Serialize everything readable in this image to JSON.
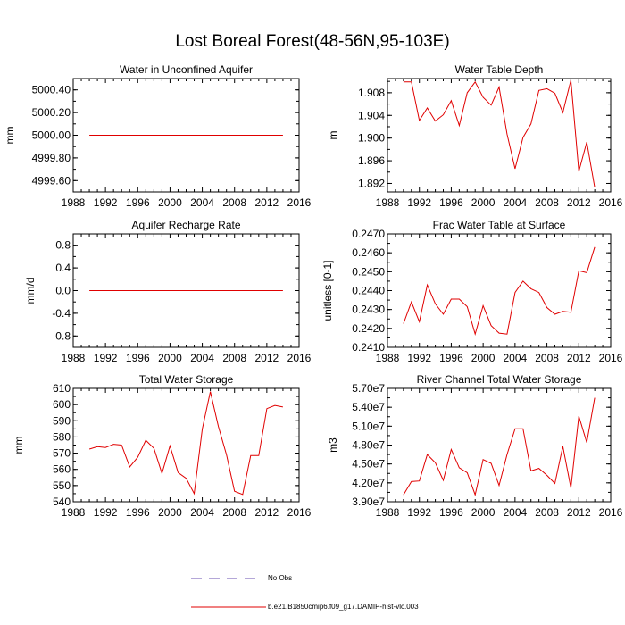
{
  "title": "Lost Boreal Forest(48-56N,95-103E)",
  "chart_data": [
    {
      "type": "line",
      "title": "Water in Unconfined Aquifer",
      "xlabel": "",
      "ylabel": "mm",
      "xlim": [
        1988,
        2016
      ],
      "ylim": [
        4999.5,
        5000.5
      ],
      "yticks": [
        4999.6,
        4999.8,
        5000.0,
        5000.2,
        5000.4
      ],
      "ytick_labels": [
        "4999.60",
        "4999.80",
        "5000.00",
        "5000.20",
        "5000.40"
      ],
      "series": [
        {
          "name": "b.e21.B1850cmip6.f09_g17.DAMIP-hist-vlc.003",
          "x": [
            1990,
            2014
          ],
          "y": [
            5000.0,
            5000.0
          ]
        }
      ]
    },
    {
      "type": "line",
      "title": "Water Table Depth",
      "xlabel": "",
      "ylabel": "m",
      "xlim": [
        1988,
        2016
      ],
      "ylim": [
        1.8905,
        1.9105
      ],
      "yticks": [
        1.892,
        1.896,
        1.9,
        1.904,
        1.908
      ],
      "ytick_labels": [
        "1.892",
        "1.896",
        "1.900",
        "1.904",
        "1.908"
      ],
      "series": [
        {
          "name": "b.e21.B1850cmip6.f09_g17.DAMIP-hist-vlc.003",
          "x": [
            1990,
            1991,
            1992,
            1993,
            1994,
            1995,
            1996,
            1997,
            1998,
            1999,
            2000,
            2001,
            2002,
            2003,
            2004,
            2005,
            2006,
            2007,
            2008,
            2009,
            2010,
            2011,
            2012,
            2013,
            2014
          ],
          "y": [
            1.9099,
            1.9099,
            1.9031,
            1.9053,
            1.903,
            1.9041,
            1.9066,
            1.9022,
            1.908,
            1.9099,
            1.9072,
            1.9058,
            1.909,
            1.9007,
            1.8946,
            1.9001,
            1.9025,
            1.9084,
            1.9087,
            1.9079,
            1.9045,
            1.9102,
            1.8941,
            1.8993,
            1.8913
          ]
        }
      ]
    },
    {
      "type": "line",
      "title": "Aquifer Recharge Rate",
      "xlabel": "",
      "ylabel": "mm/d",
      "xlim": [
        1988,
        2016
      ],
      "ylim": [
        -1.0,
        1.0
      ],
      "yticks": [
        -0.8,
        -0.4,
        0.0,
        0.4,
        0.8
      ],
      "ytick_labels": [
        "-0.8",
        "-0.4",
        "0.0",
        "0.4",
        "0.8"
      ],
      "series": [
        {
          "name": "b.e21.B1850cmip6.f09_g17.DAMIP-hist-vlc.003",
          "x": [
            1990,
            2014
          ],
          "y": [
            0.0,
            0.0
          ]
        }
      ]
    },
    {
      "type": "line",
      "title": "Frac Water Table at Surface",
      "xlabel": "",
      "ylabel": "unitless [0-1]",
      "xlim": [
        1988,
        2016
      ],
      "ylim": [
        0.241,
        0.247
      ],
      "yticks": [
        0.241,
        0.242,
        0.243,
        0.244,
        0.245,
        0.246,
        0.247
      ],
      "ytick_labels": [
        "0.2410",
        "0.2420",
        "0.2430",
        "0.2440",
        "0.2450",
        "0.2460",
        "0.2470"
      ],
      "series": [
        {
          "name": "b.e21.B1850cmip6.f09_g17.DAMIP-hist-vlc.003",
          "x": [
            1990,
            1991,
            1992,
            1993,
            1994,
            1995,
            1996,
            1997,
            1998,
            1999,
            2000,
            2001,
            2002,
            2003,
            2004,
            2005,
            2006,
            2007,
            2008,
            2009,
            2010,
            2011,
            2012,
            2013,
            2014
          ],
          "y": [
            0.24225,
            0.2434,
            0.24235,
            0.2443,
            0.2433,
            0.24275,
            0.24355,
            0.24355,
            0.24315,
            0.2417,
            0.2432,
            0.24215,
            0.24175,
            0.2417,
            0.2439,
            0.2445,
            0.2441,
            0.2439,
            0.2431,
            0.24275,
            0.2429,
            0.24285,
            0.24505,
            0.24495,
            0.2463
          ]
        }
      ]
    },
    {
      "type": "line",
      "title": "Total Water Storage",
      "xlabel": "",
      "ylabel": "mm",
      "xlim": [
        1988,
        2016
      ],
      "ylim": [
        540,
        610
      ],
      "yticks": [
        540,
        550,
        560,
        570,
        580,
        590,
        600,
        610
      ],
      "ytick_labels": [
        "540",
        "550",
        "560",
        "570",
        "580",
        "590",
        "600",
        "610"
      ],
      "series": [
        {
          "name": "b.e21.B1850cmip6.f09_g17.DAMIP-hist-vlc.003",
          "x": [
            1990,
            1991,
            1992,
            1993,
            1994,
            1995,
            1996,
            1997,
            1998,
            1999,
            2000,
            2001,
            2002,
            2003,
            2004,
            2005,
            2006,
            2007,
            2008,
            2009,
            2010,
            2011,
            2012,
            2013,
            2014
          ],
          "y": [
            572.5,
            574.0,
            573.5,
            575.5,
            575.0,
            561.5,
            567.5,
            578.0,
            573.0,
            557.5,
            574.5,
            558.0,
            554.5,
            545.0,
            585.0,
            608.0,
            586.5,
            569.0,
            546.5,
            544.5,
            568.5,
            568.5,
            597.5,
            599.5,
            598.5
          ]
        }
      ]
    },
    {
      "type": "line",
      "title": "River Channel Total Water Storage",
      "xlabel": "",
      "ylabel": "m3",
      "xlim": [
        1988,
        2016
      ],
      "ylim": [
        39000000,
        57000000
      ],
      "yticks": [
        39000000,
        42000000,
        45000000,
        48000000,
        51000000,
        54000000,
        57000000
      ],
      "ytick_labels": [
        "3.90e7",
        "4.20e7",
        "4.50e7",
        "4.80e7",
        "5.10e7",
        "5.40e7",
        "5.70e7"
      ],
      "series": [
        {
          "name": "b.e21.B1850cmip6.f09_g17.DAMIP-hist-vlc.003",
          "x": [
            1990,
            1991,
            1992,
            1993,
            1994,
            1995,
            1996,
            1997,
            1998,
            1999,
            2000,
            2001,
            2002,
            2003,
            2004,
            2005,
            2006,
            2007,
            2008,
            2009,
            2010,
            2011,
            2012,
            2013,
            2014
          ],
          "y": [
            40100000,
            42200000,
            42300000,
            46500000,
            45200000,
            42400000,
            47300000,
            44400000,
            43600000,
            40100000,
            45700000,
            45100000,
            41600000,
            46500000,
            50600000,
            50600000,
            43900000,
            44300000,
            43200000,
            41900000,
            47800000,
            41200000,
            52600000,
            48400000,
            55500000
          ]
        }
      ]
    }
  ],
  "xtick_labels": [
    "1988",
    "1992",
    "1996",
    "2000",
    "2004",
    "2008",
    "2012",
    "2016"
  ],
  "legend": {
    "no_obs_label": "No Obs",
    "model_label": "b.e21.B1850cmip6.f09_g17.DAMIP-hist-vlc.003",
    "no_obs_color": "#6a4fb0",
    "model_color": "#e00000"
  },
  "colors": {
    "axis": "#000000",
    "line": "#e00000"
  }
}
